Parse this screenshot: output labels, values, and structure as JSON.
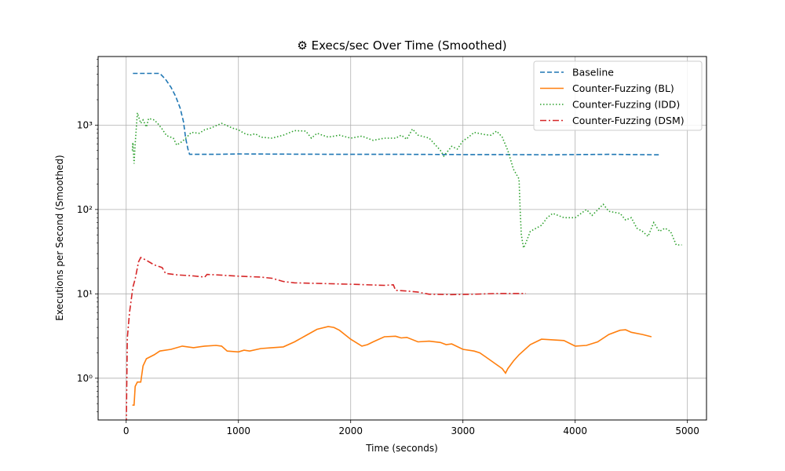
{
  "chart_data": {
    "type": "line",
    "title": "⚙ Execs/sec Over Time (Smoothed)",
    "xlabel": "Time (seconds)",
    "ylabel": "Executions per Second (Smoothed)",
    "xlim": [
      -250,
      5170
    ],
    "ylim": [
      0.32,
      6500
    ],
    "yscale": "log",
    "grid": true,
    "legend_position": "top-right",
    "xticks": [
      0,
      1000,
      2000,
      3000,
      4000,
      5000
    ],
    "xtick_labels": [
      "0",
      "1000",
      "2000",
      "3000",
      "4000",
      "5000"
    ],
    "yticks": [
      1,
      10,
      100,
      1000
    ],
    "ytick_labels": [
      "10⁰",
      "10¹",
      "10²",
      "10³"
    ],
    "series": [
      {
        "name": "Baseline",
        "color": "#1f77b4",
        "style": "dashed",
        "points": [
          [
            60,
            4100
          ],
          [
            300,
            4100
          ],
          [
            350,
            3500
          ],
          [
            400,
            2800
          ],
          [
            440,
            2200
          ],
          [
            480,
            1600
          ],
          [
            510,
            1100
          ],
          [
            530,
            700
          ],
          [
            550,
            520
          ],
          [
            565,
            450
          ],
          [
            600,
            450
          ],
          [
            800,
            450
          ],
          [
            1000,
            455
          ],
          [
            1500,
            452
          ],
          [
            2000,
            450
          ],
          [
            2500,
            450
          ],
          [
            3000,
            448
          ],
          [
            3500,
            447
          ],
          [
            3800,
            445
          ],
          [
            4000,
            448
          ],
          [
            4300,
            450
          ],
          [
            4500,
            448
          ],
          [
            4750,
            445
          ]
        ]
      },
      {
        "name": "Counter-Fuzzing (BL)",
        "color": "#ff7f0e",
        "style": "solid",
        "points": [
          [
            55,
            0.48
          ],
          [
            70,
            0.48
          ],
          [
            80,
            0.8
          ],
          [
            100,
            0.9
          ],
          [
            130,
            0.9
          ],
          [
            150,
            1.4
          ],
          [
            180,
            1.7
          ],
          [
            250,
            1.9
          ],
          [
            300,
            2.1
          ],
          [
            400,
            2.2
          ],
          [
            500,
            2.4
          ],
          [
            600,
            2.3
          ],
          [
            700,
            2.4
          ],
          [
            800,
            2.45
          ],
          [
            850,
            2.4
          ],
          [
            900,
            2.1
          ],
          [
            1000,
            2.05
          ],
          [
            1050,
            2.15
          ],
          [
            1100,
            2.1
          ],
          [
            1200,
            2.25
          ],
          [
            1300,
            2.3
          ],
          [
            1400,
            2.35
          ],
          [
            1500,
            2.7
          ],
          [
            1600,
            3.2
          ],
          [
            1700,
            3.8
          ],
          [
            1800,
            4.1
          ],
          [
            1850,
            4.0
          ],
          [
            1900,
            3.7
          ],
          [
            2000,
            2.9
          ],
          [
            2100,
            2.4
          ],
          [
            2150,
            2.5
          ],
          [
            2200,
            2.7
          ],
          [
            2300,
            3.1
          ],
          [
            2400,
            3.15
          ],
          [
            2450,
            3.0
          ],
          [
            2500,
            3.05
          ],
          [
            2600,
            2.7
          ],
          [
            2700,
            2.75
          ],
          [
            2800,
            2.65
          ],
          [
            2850,
            2.5
          ],
          [
            2900,
            2.55
          ],
          [
            3000,
            2.2
          ],
          [
            3100,
            2.1
          ],
          [
            3150,
            2.0
          ],
          [
            3200,
            1.8
          ],
          [
            3300,
            1.45
          ],
          [
            3350,
            1.3
          ],
          [
            3380,
            1.15
          ],
          [
            3400,
            1.3
          ],
          [
            3450,
            1.6
          ],
          [
            3500,
            1.9
          ],
          [
            3600,
            2.5
          ],
          [
            3700,
            2.9
          ],
          [
            3800,
            2.85
          ],
          [
            3900,
            2.8
          ],
          [
            4000,
            2.4
          ],
          [
            4100,
            2.45
          ],
          [
            4200,
            2.7
          ],
          [
            4300,
            3.3
          ],
          [
            4400,
            3.7
          ],
          [
            4450,
            3.75
          ],
          [
            4500,
            3.5
          ],
          [
            4600,
            3.3
          ],
          [
            4680,
            3.1
          ]
        ]
      },
      {
        "name": "Counter-Fuzzing (IDD)",
        "color": "#2ca02c",
        "style": "dotted",
        "points": [
          [
            55,
            500
          ],
          [
            60,
            620
          ],
          [
            70,
            350
          ],
          [
            80,
            600
          ],
          [
            100,
            1400
          ],
          [
            130,
            1050
          ],
          [
            150,
            1150
          ],
          [
            180,
            950
          ],
          [
            200,
            1200
          ],
          [
            250,
            1150
          ],
          [
            280,
            1050
          ],
          [
            320,
            900
          ],
          [
            360,
            750
          ],
          [
            420,
            700
          ],
          [
            450,
            580
          ],
          [
            500,
            640
          ],
          [
            540,
            720
          ],
          [
            580,
            820
          ],
          [
            650,
            800
          ],
          [
            700,
            880
          ],
          [
            750,
            920
          ],
          [
            850,
            1050
          ],
          [
            950,
            920
          ],
          [
            1000,
            880
          ],
          [
            1050,
            800
          ],
          [
            1100,
            760
          ],
          [
            1150,
            790
          ],
          [
            1200,
            720
          ],
          [
            1300,
            700
          ],
          [
            1400,
            760
          ],
          [
            1500,
            860
          ],
          [
            1600,
            850
          ],
          [
            1650,
            700
          ],
          [
            1700,
            800
          ],
          [
            1800,
            720
          ],
          [
            1900,
            760
          ],
          [
            2000,
            700
          ],
          [
            2100,
            740
          ],
          [
            2200,
            660
          ],
          [
            2300,
            700
          ],
          [
            2400,
            700
          ],
          [
            2450,
            760
          ],
          [
            2500,
            680
          ],
          [
            2550,
            900
          ],
          [
            2600,
            760
          ],
          [
            2700,
            700
          ],
          [
            2800,
            500
          ],
          [
            2830,
            430
          ],
          [
            2900,
            560
          ],
          [
            2950,
            520
          ],
          [
            3000,
            650
          ],
          [
            3050,
            720
          ],
          [
            3100,
            820
          ],
          [
            3200,
            770
          ],
          [
            3250,
            760
          ],
          [
            3300,
            850
          ],
          [
            3350,
            720
          ],
          [
            3400,
            500
          ],
          [
            3450,
            300
          ],
          [
            3500,
            230
          ],
          [
            3510,
            100
          ],
          [
            3520,
            50
          ],
          [
            3540,
            35
          ],
          [
            3560,
            40
          ],
          [
            3600,
            55
          ],
          [
            3700,
            65
          ],
          [
            3750,
            80
          ],
          [
            3800,
            90
          ],
          [
            3900,
            80
          ],
          [
            4000,
            80
          ],
          [
            4100,
            100
          ],
          [
            4150,
            85
          ],
          [
            4250,
            115
          ],
          [
            4300,
            95
          ],
          [
            4400,
            90
          ],
          [
            4450,
            75
          ],
          [
            4500,
            80
          ],
          [
            4550,
            60
          ],
          [
            4600,
            55
          ],
          [
            4650,
            48
          ],
          [
            4700,
            70
          ],
          [
            4750,
            55
          ],
          [
            4800,
            60
          ],
          [
            4850,
            55
          ],
          [
            4900,
            38
          ],
          [
            4950,
            38
          ]
        ]
      },
      {
        "name": "Counter-Fuzzing (DSM)",
        "color": "#d62728",
        "style": "dashdot",
        "points": [
          [
            0,
            0.2
          ],
          [
            10,
            3
          ],
          [
            30,
            6
          ],
          [
            60,
            12
          ],
          [
            80,
            15
          ],
          [
            110,
            24
          ],
          [
            130,
            27
          ],
          [
            180,
            25
          ],
          [
            250,
            22
          ],
          [
            320,
            20.5
          ],
          [
            350,
            17.5
          ],
          [
            450,
            16.8
          ],
          [
            600,
            16.3
          ],
          [
            700,
            15.8
          ],
          [
            720,
            17
          ],
          [
            800,
            16.8
          ],
          [
            1000,
            16.2
          ],
          [
            1200,
            15.8
          ],
          [
            1300,
            15.3
          ],
          [
            1400,
            14
          ],
          [
            1500,
            13.5
          ],
          [
            1700,
            13.3
          ],
          [
            2000,
            13
          ],
          [
            2300,
            12.6
          ],
          [
            2380,
            12.8
          ],
          [
            2400,
            11
          ],
          [
            2500,
            10.8
          ],
          [
            2600,
            10.5
          ],
          [
            2700,
            9.9
          ],
          [
            2900,
            9.8
          ],
          [
            3100,
            9.9
          ],
          [
            3300,
            10.1
          ],
          [
            3560,
            10.1
          ]
        ]
      }
    ]
  }
}
